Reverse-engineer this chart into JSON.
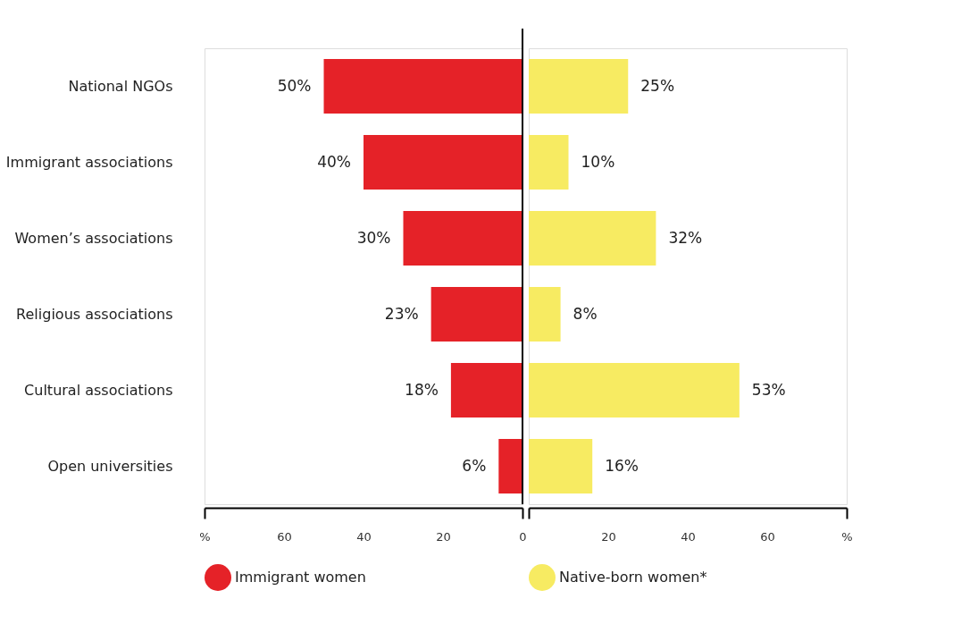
{
  "chart_data": [
    {
      "type": "bar",
      "orientation": "horizontal",
      "categories": [
        "National NGOs",
        "Immigrant associations",
        "Women’s associations",
        "Religious associations",
        "Cultural associations",
        "Open universities"
      ],
      "series": [
        {
          "name": "Immigrant women",
          "color": "#e52228",
          "values": [
            50,
            40,
            30,
            23,
            18,
            6
          ],
          "value_labels": [
            "50%",
            "40%",
            "30%",
            "23%",
            "18%",
            "6%"
          ]
        }
      ],
      "xlim": [
        80,
        0
      ],
      "xticks": [
        {
          "value": 80,
          "label": "%"
        },
        60,
        40,
        20,
        0
      ],
      "ref_lines": [
        {
          "axis": "x",
          "value": 0
        }
      ],
      "legend": "bottom"
    },
    {
      "type": "bar",
      "orientation": "horizontal",
      "categories": [
        "National NGOs",
        "Immigrant associations",
        "Women’s associations",
        "Religious associations",
        "Cultural associations",
        "Open universities"
      ],
      "series": [
        {
          "name": "Native-born women*",
          "color": "#f7eb62",
          "values": [
            25,
            10,
            32,
            8,
            53,
            16
          ],
          "value_labels": [
            "25%",
            "10%",
            "32%",
            "8%",
            "53%",
            "16%"
          ]
        }
      ],
      "xlim": [
        0,
        80
      ],
      "xticks": [
        {
          "value": 0,
          "label": null
        },
        20,
        40,
        60,
        {
          "value": 80,
          "label": "%"
        }
      ],
      "tick_labels": "x",
      "legend": "bottom"
    }
  ]
}
